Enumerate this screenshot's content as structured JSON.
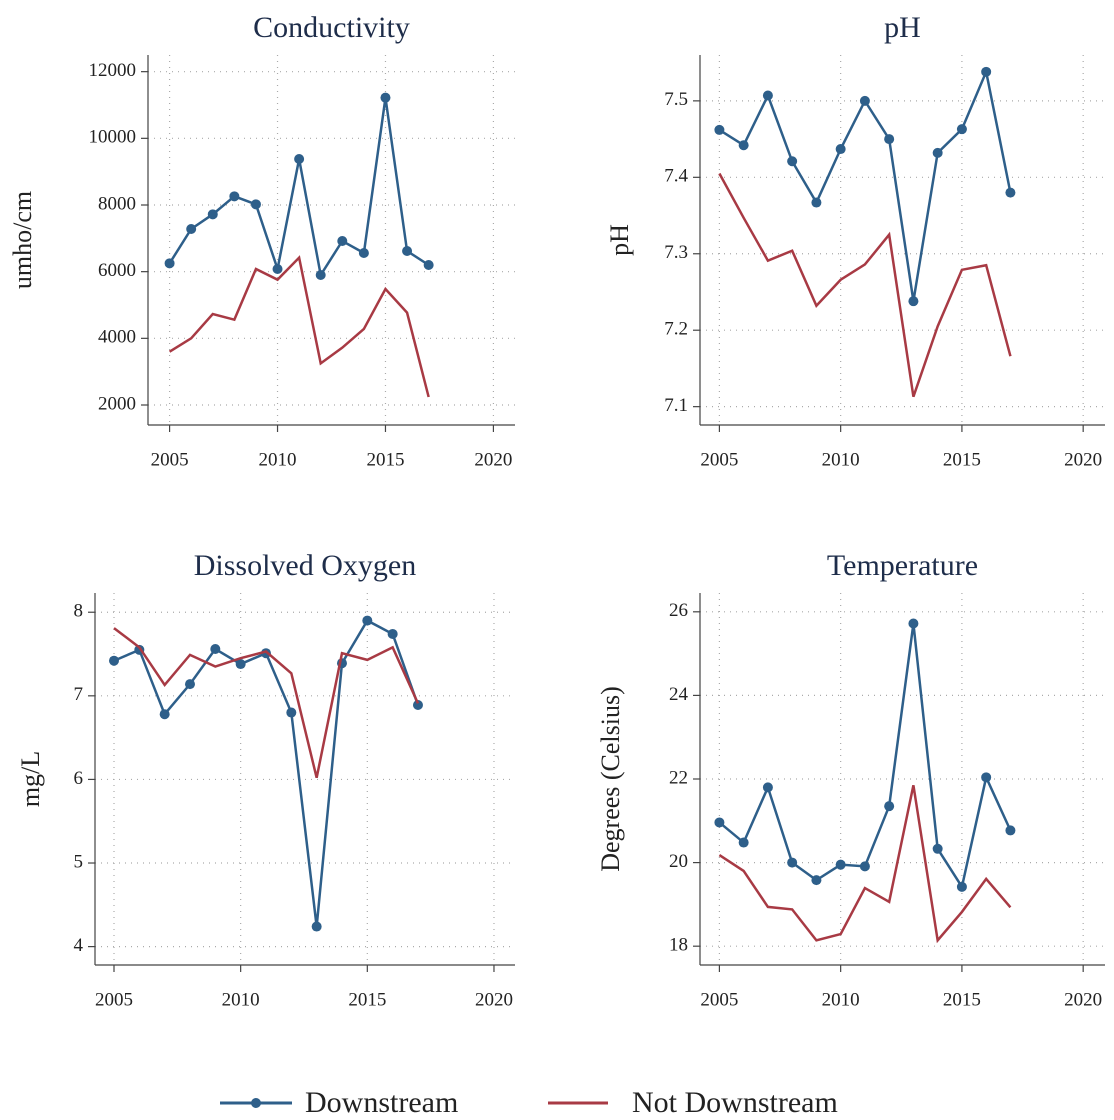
{
  "chart_data": [
    {
      "type": "line",
      "title": "Conductivity",
      "y_label": "umho/cm",
      "x": [
        2005,
        2006,
        2007,
        2008,
        2009,
        2010,
        2011,
        2012,
        2013,
        2014,
        2015,
        2016,
        2017
      ],
      "xlim": [
        2004,
        2021
      ],
      "xticks": [
        2005,
        2010,
        2015,
        2020
      ],
      "ylim": [
        1400,
        12500
      ],
      "yticks": [
        2000,
        4000,
        6000,
        8000,
        10000,
        12000
      ],
      "grid": true,
      "series": [
        {
          "name": "Downstream",
          "color": "#2e5f8a",
          "marker": "circle",
          "values": [
            6250,
            7280,
            7720,
            8260,
            8020,
            6080,
            9380,
            5900,
            6920,
            6560,
            11220,
            6620,
            6200
          ]
        },
        {
          "name": "Not Downstream",
          "color": "#a83a44",
          "values": [
            3600,
            4000,
            4730,
            4560,
            6080,
            5760,
            6420,
            3250,
            3720,
            4280,
            5480,
            4770,
            2240
          ]
        }
      ]
    },
    {
      "type": "line",
      "title": "pH",
      "y_label": "pH",
      "x": [
        2005,
        2006,
        2007,
        2008,
        2009,
        2010,
        2011,
        2012,
        2013,
        2014,
        2015,
        2016,
        2017
      ],
      "xlim": [
        2004.2,
        2020.9
      ],
      "xticks": [
        2005,
        2010,
        2015,
        2020
      ],
      "ylim": [
        7.076,
        7.56
      ],
      "yticks": [
        7.1,
        7.2,
        7.3,
        7.4,
        7.5
      ],
      "grid": true,
      "series": [
        {
          "name": "Downstream",
          "color": "#2e5f8a",
          "marker": "circle",
          "values": [
            7.462,
            7.442,
            7.507,
            7.421,
            7.367,
            7.437,
            7.5,
            7.45,
            7.238,
            7.432,
            7.463,
            7.538,
            7.38
          ]
        },
        {
          "name": "Not Downstream",
          "color": "#a83a44",
          "values": [
            7.405,
            7.347,
            7.291,
            7.304,
            7.232,
            7.266,
            7.286,
            7.325,
            7.113,
            7.205,
            7.279,
            7.285,
            7.166
          ]
        }
      ]
    },
    {
      "type": "line",
      "title": "Dissolved Oxygen",
      "y_label": "mg/L",
      "x": [
        2005,
        2006,
        2007,
        2008,
        2009,
        2010,
        2011,
        2012,
        2013,
        2014,
        2015,
        2016,
        2017
      ],
      "xlim": [
        2004.25,
        2020.83
      ],
      "xticks": [
        2005,
        2010,
        2015,
        2020
      ],
      "ylim": [
        3.78,
        8.23
      ],
      "yticks": [
        4,
        5,
        6,
        7,
        8
      ],
      "grid": true,
      "series": [
        {
          "name": "Downstream",
          "color": "#2e5f8a",
          "marker": "circle",
          "values": [
            7.42,
            7.55,
            6.78,
            7.14,
            7.56,
            7.38,
            7.51,
            6.8,
            4.24,
            7.39,
            7.9,
            7.74,
            6.89
          ]
        },
        {
          "name": "Not Downstream",
          "color": "#a83a44",
          "values": [
            7.81,
            7.58,
            7.13,
            7.49,
            7.35,
            7.45,
            7.53,
            7.27,
            6.02,
            7.51,
            7.43,
            7.58,
            6.91
          ]
        }
      ]
    },
    {
      "type": "line",
      "title": "Temperature",
      "y_label": "Degrees (Celsius)",
      "x": [
        2005,
        2006,
        2007,
        2008,
        2009,
        2010,
        2011,
        2012,
        2013,
        2014,
        2015,
        2016,
        2017
      ],
      "xlim": [
        2004.2,
        2020.9
      ],
      "xticks": [
        2005,
        2010,
        2015,
        2020
      ],
      "ylim": [
        17.55,
        26.45
      ],
      "yticks": [
        18,
        20,
        22,
        24,
        26
      ],
      "grid": true,
      "series": [
        {
          "name": "Downstream",
          "color": "#2e5f8a",
          "marker": "circle",
          "values": [
            20.96,
            20.48,
            21.8,
            20.0,
            19.58,
            19.95,
            19.91,
            21.35,
            25.72,
            20.33,
            19.42,
            22.04,
            20.77
          ]
        },
        {
          "name": "Not Downstream",
          "color": "#a83a44",
          "values": [
            20.18,
            19.8,
            18.94,
            18.88,
            18.14,
            18.29,
            19.39,
            19.06,
            21.85,
            18.14,
            18.82,
            19.61,
            18.93
          ]
        }
      ]
    }
  ]
}
